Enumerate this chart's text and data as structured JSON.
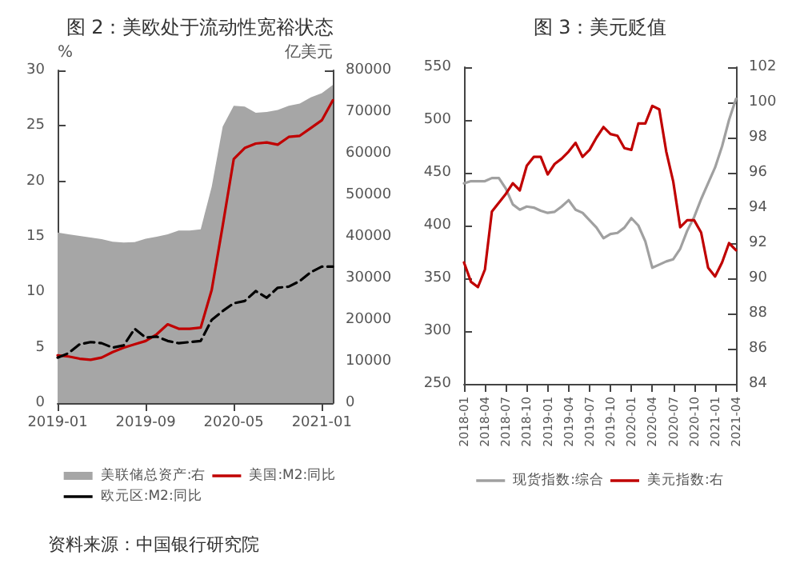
{
  "chart_data": [
    {
      "type": "line",
      "title": "图 2：美欧处于流动性宽裕状态",
      "ylabel": "%",
      "y2label": "亿美元",
      "categories": [
        "2019-01",
        null,
        null,
        null,
        null,
        null,
        null,
        null,
        "2019-09",
        null,
        null,
        null,
        null,
        null,
        null,
        null,
        "2020-05",
        null,
        null,
        null,
        null,
        null,
        null,
        null,
        "2021-01",
        null
      ],
      "series": [
        {
          "name": "美联储总资产:右",
          "type": "area",
          "axis": "y2",
          "color": "#a6a6a6",
          "values": [
            41000,
            40600,
            40200,
            39800,
            39400,
            38800,
            38600,
            38700,
            39500,
            40000,
            40600,
            41500,
            41500,
            41800,
            52000,
            66500,
            71500,
            71300,
            69800,
            70000,
            70500,
            71500,
            72000,
            73500,
            74500,
            76500
          ]
        },
        {
          "name": "美国:M2:同比",
          "color": "#c00000",
          "values": [
            4.3,
            4.2,
            4.0,
            3.9,
            4.1,
            4.6,
            5.0,
            5.3,
            5.6,
            6.2,
            7.1,
            6.7,
            6.7,
            6.8,
            10.2,
            16.0,
            22.0,
            23.0,
            23.4,
            23.5,
            23.3,
            24.0,
            24.1,
            24.8,
            25.5,
            27.3
          ]
        },
        {
          "name": "欧元区:M2:同比",
          "color": "#000000",
          "line_style": "dashed",
          "values": [
            4.1,
            4.5,
            5.3,
            5.5,
            5.4,
            5.0,
            5.2,
            6.7,
            5.9,
            6.0,
            5.6,
            5.4,
            5.5,
            5.6,
            7.5,
            8.3,
            9.0,
            9.2,
            10.1,
            9.5,
            10.4,
            10.5,
            11.0,
            11.8,
            12.3,
            12.3
          ]
        }
      ],
      "ylim": [
        0,
        30
      ],
      "yticks": [
        0,
        5,
        10,
        15,
        20,
        25,
        30
      ],
      "y2lim": [
        0,
        80000
      ],
      "y2ticks": [
        0,
        10000,
        20000,
        30000,
        40000,
        50000,
        60000,
        70000,
        80000
      ],
      "grid": false,
      "legend": "bottom",
      "marker": "none",
      "annotations": [
        "资料来源：中国银行研究院"
      ]
    },
    {
      "type": "line",
      "title": "图 3：美元贬值",
      "categories": [
        "2018-01",
        null,
        null,
        "2018-04",
        null,
        null,
        "2018-07",
        null,
        null,
        "2018-10",
        null,
        null,
        "2019-01",
        null,
        null,
        "2019-04",
        null,
        null,
        "2019-07",
        null,
        null,
        "2019-10",
        null,
        null,
        "2020-01",
        null,
        null,
        "2020-04",
        null,
        null,
        "2020-07",
        null,
        null,
        "2020-10",
        null,
        null,
        "2021-01",
        null,
        null,
        "2021-04"
      ],
      "series": [
        {
          "name": "现货指数:综合",
          "color": "#a0a0a0",
          "values": [
            440,
            442,
            442,
            442,
            445,
            445,
            435,
            420,
            415,
            418,
            417,
            414,
            412,
            413,
            418,
            424,
            415,
            412,
            405,
            398,
            388,
            392,
            393,
            398,
            407,
            400,
            385,
            360,
            363,
            366,
            368,
            378,
            395,
            408,
            425,
            440,
            455,
            475,
            500,
            520
          ]
        },
        {
          "name": "美元指数:右",
          "axis": "y2",
          "color": "#c00000",
          "values": [
            90.9,
            89.8,
            89.5,
            90.5,
            93.8,
            94.3,
            94.8,
            95.4,
            95.0,
            96.4,
            96.9,
            96.9,
            95.9,
            96.5,
            96.8,
            97.2,
            97.7,
            96.9,
            97.3,
            98.0,
            98.6,
            98.2,
            98.1,
            97.4,
            97.3,
            98.8,
            98.8,
            99.8,
            99.6,
            97.2,
            95.5,
            92.9,
            93.3,
            93.3,
            92.6,
            90.6,
            90.1,
            90.9,
            92.0,
            91.6
          ]
        }
      ],
      "ylim": [
        250,
        550
      ],
      "yticks": [
        250,
        300,
        350,
        400,
        450,
        500,
        550
      ],
      "y2lim": [
        84,
        102
      ],
      "y2ticks": [
        84,
        86,
        88,
        90,
        92,
        94,
        96,
        98,
        100,
        102
      ],
      "grid": false,
      "legend": "bottom",
      "marker": "none"
    }
  ]
}
